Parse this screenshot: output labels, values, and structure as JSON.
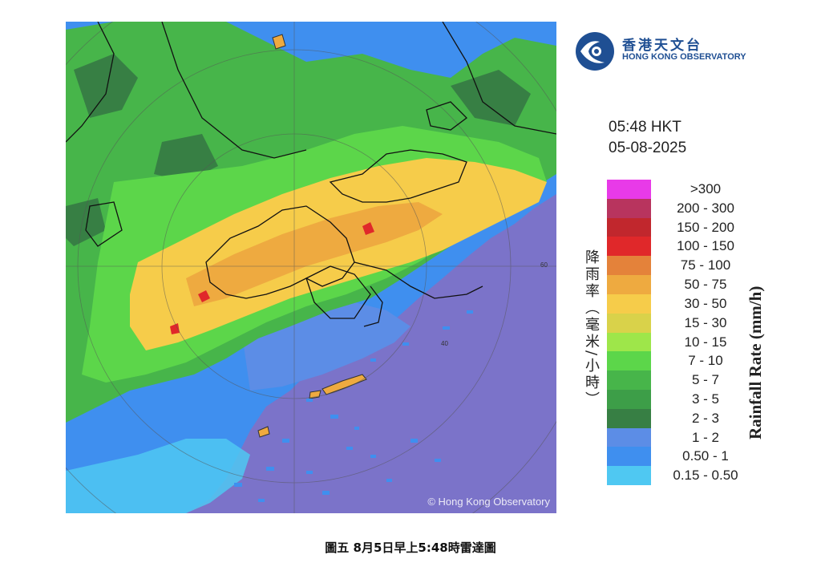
{
  "header": {
    "org_name_cn": "香港天文台",
    "org_name_en": "HONG KONG OBSERVATORY",
    "time": "05:48 HKT",
    "date": "05-08-2025"
  },
  "map": {
    "watermark": "© Hong Kong Observatory",
    "range_ring_labels": [
      "60",
      "40"
    ],
    "sea_color": "#7b73c9"
  },
  "legend": {
    "title_cn": "降雨率（毫米/小時）",
    "title_en": "Rainfall Rate (mm/h)",
    "items": [
      {
        "label": ">300",
        "color": "#e83ae8"
      },
      {
        "label": "200 - 300",
        "color": "#b8345e"
      },
      {
        "label": "150 - 200",
        "color": "#c1272d"
      },
      {
        "label": "100 - 150",
        "color": "#e0282a"
      },
      {
        "label": "75 - 100",
        "color": "#e4823a"
      },
      {
        "label": "50 - 75",
        "color": "#eeaa40"
      },
      {
        "label": "30 - 50",
        "color": "#f6cc4a"
      },
      {
        "label": "15 - 30",
        "color": "#d9d24a"
      },
      {
        "label": "10 - 15",
        "color": "#9ee64a"
      },
      {
        "label": "7 - 10",
        "color": "#5cd64a"
      },
      {
        "label": "5 - 7",
        "color": "#47b54a"
      },
      {
        "label": "3 - 5",
        "color": "#3d9e48"
      },
      {
        "label": "2 - 3",
        "color": "#377f44"
      },
      {
        "label": "1 - 2",
        "color": "#5c8de6"
      },
      {
        "label": "0.50 - 1",
        "color": "#3f8fef"
      },
      {
        "label": "0.15 - 0.50",
        "color": "#4fc8f2"
      }
    ]
  },
  "caption": "圖五 8月5日早上5:48時雷達圖"
}
